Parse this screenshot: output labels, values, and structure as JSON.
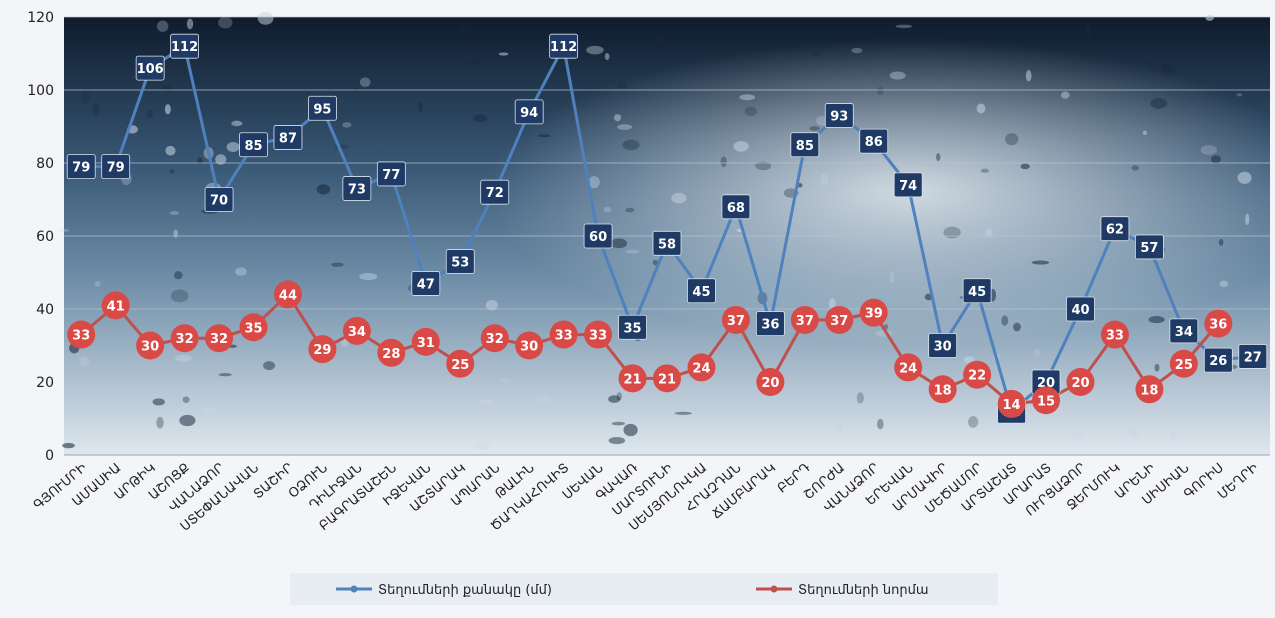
{
  "chart_data": {
    "type": "line",
    "title": "",
    "xlabel": "",
    "ylabel": "",
    "ylim": [
      0,
      120
    ],
    "yticks": [
      0,
      20,
      40,
      60,
      80,
      100,
      120
    ],
    "grid": true,
    "legend_position": "bottom",
    "categories": [
      "ԳՅՈՒՄՐԻ",
      "ԱՄԱՍԻԱ",
      "ԱՐԹԻԿ",
      "ԱՇՈՑՔ",
      "ՎԱՆԱՁՈՐ",
      "ՍՏԵՓԱՆԱՎԱՆ",
      "ՏԱՇԻՐ",
      "ՕՁՈՒՆ",
      "ԴԻԼԻՋԱՆ",
      "ԲԱԳՐԱՏԱՇԵՆ",
      "ԻՋԵՎԱՆ",
      "ԱՇՏԱՐԱԿ",
      "ԱՊԱՐԱՆ",
      "ԹԱԼԻՆ",
      "ԾԱՂԿԱՀՈՎԻՏ",
      "ՍԵՎԱՆ",
      "ԳԱՎԱՌ",
      "ՄԱՐՏՈՒՆԻ",
      "ՍԵՄՅՈՆՈՎԿԱ",
      "ՀՐԱԶԴԱՆ",
      "ՃԱՄԲԱՐԱԿ",
      "ԲԵՐԴ",
      "ՇՈՐԺԱ",
      "ՎԱՆԱՁՈՐ",
      "ԵՐԵՎԱՆ",
      "ԱՐՄԱՎԻՐ",
      "ՄԵԾԱՄՈՐ",
      "ԱՐՏԱՇԱՏ",
      "ԱՐԱՐԱՏ",
      "ՈՒՐՑԱՁՈՐ",
      "ՋԵՐՄՈՒԿ",
      "ԱՐԵՆԻ",
      "ՍԻՍԻԱՆ",
      "ԳՈՐԻՍ",
      "ՄԵՂՐԻ"
    ],
    "series": [
      {
        "name": "Տեղումների քանակը (մմ)",
        "color": "#4f81bd",
        "label_bg": "#1f3a64",
        "values": [
          79,
          79,
          106,
          112,
          70,
          85,
          87,
          95,
          73,
          77,
          47,
          53,
          72,
          94,
          112,
          60,
          35,
          58,
          45,
          68,
          36,
          85,
          93,
          86,
          74,
          30,
          45,
          12,
          20,
          40,
          62,
          57,
          34,
          26,
          27
        ]
      },
      {
        "name": "Տեղումների նորմա",
        "color": "#c0504d",
        "label_bg": "#d94a47",
        "values": [
          33,
          41,
          30,
          32,
          32,
          35,
          44,
          29,
          34,
          28,
          31,
          25,
          32,
          30,
          33,
          33,
          21,
          21,
          24,
          37,
          20,
          37,
          37,
          39,
          24,
          18,
          22,
          14,
          15,
          20,
          33,
          18,
          25,
          36,
          null
        ]
      }
    ]
  }
}
